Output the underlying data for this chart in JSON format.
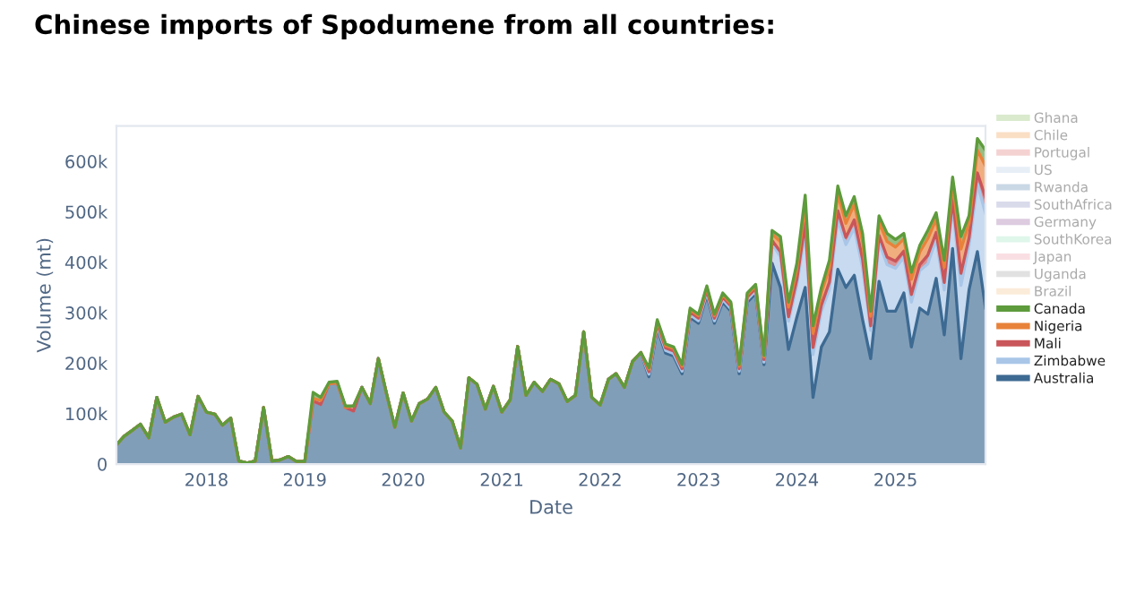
{
  "chart_data": {
    "type": "area",
    "stacked": true,
    "title": "Chinese imports of Spodumene from all countries:",
    "xlabel": "Date",
    "ylabel": "Volume (mt)",
    "x": [
      "2017-02",
      "2017-03",
      "2017-04",
      "2017-05",
      "2017-06",
      "2017-07",
      "2017-08",
      "2017-09",
      "2017-10",
      "2017-11",
      "2017-12",
      "2018-01",
      "2018-02",
      "2018-03",
      "2018-04",
      "2018-05",
      "2018-06",
      "2018-07",
      "2018-08",
      "2018-09",
      "2018-10",
      "2018-11",
      "2018-12",
      "2019-01",
      "2019-02",
      "2019-03",
      "2019-04",
      "2019-05",
      "2019-06",
      "2019-07",
      "2019-08",
      "2019-09",
      "2019-10",
      "2019-11",
      "2019-12",
      "2020-01",
      "2020-02",
      "2020-03",
      "2020-04",
      "2020-05",
      "2020-06",
      "2020-07",
      "2020-08",
      "2020-09",
      "2020-10",
      "2020-11",
      "2020-12",
      "2021-01",
      "2021-02",
      "2021-03",
      "2021-04",
      "2021-05",
      "2021-06",
      "2021-07",
      "2021-08",
      "2021-09",
      "2021-10",
      "2021-11",
      "2021-12",
      "2022-01",
      "2022-02",
      "2022-03",
      "2022-04",
      "2022-05",
      "2022-06",
      "2022-07",
      "2022-08",
      "2022-09",
      "2022-10",
      "2022-11",
      "2022-12",
      "2023-01",
      "2023-02",
      "2023-03",
      "2023-04",
      "2023-05",
      "2023-06",
      "2023-07",
      "2023-08",
      "2023-09",
      "2023-10",
      "2023-11",
      "2023-12",
      "2024-01",
      "2024-02",
      "2024-03",
      "2024-04",
      "2024-05",
      "2024-06",
      "2024-07",
      "2024-08",
      "2024-09",
      "2024-10",
      "2024-11",
      "2024-12",
      "2025-01",
      "2025-02",
      "2025-03",
      "2025-04",
      "2025-05",
      "2025-06",
      "2025-07",
      "2025-08",
      "2025-09",
      "2025-10",
      "2025-11",
      "2025-12"
    ],
    "xticks": [
      {
        "value": "2018-01",
        "label": "2018"
      },
      {
        "value": "2019-01",
        "label": "2019"
      },
      {
        "value": "2020-01",
        "label": "2020"
      },
      {
        "value": "2021-01",
        "label": "2021"
      },
      {
        "value": "2022-01",
        "label": "2022"
      },
      {
        "value": "2023-01",
        "label": "2023"
      },
      {
        "value": "2024-01",
        "label": "2024"
      },
      {
        "value": "2025-01",
        "label": "2025"
      }
    ],
    "xlim": [
      "2017-02",
      "2025-12"
    ],
    "ylim": [
      0,
      670000
    ],
    "yticks": [
      0,
      {
        "value": 100000,
        "label": "100k"
      },
      {
        "value": 200000,
        "label": "200k"
      },
      {
        "value": 300000,
        "label": "300k"
      },
      {
        "value": 400000,
        "label": "400k"
      },
      {
        "value": 500000,
        "label": "500k"
      },
      {
        "value": 600000,
        "label": "600k"
      }
    ],
    "grid": false,
    "legend": "right",
    "series": [
      {
        "name": "Australia",
        "color": "#3d6a92",
        "values": [
          38000,
          55000,
          67000,
          79000,
          52000,
          132000,
          83000,
          93000,
          99000,
          58000,
          134000,
          103000,
          99000,
          77000,
          91000,
          6000,
          2000,
          6000,
          112000,
          6000,
          8000,
          15000,
          5000,
          5000,
          125000,
          118000,
          159000,
          161000,
          112000,
          105000,
          152000,
          120000,
          209000,
          138000,
          73000,
          141000,
          85000,
          120000,
          129000,
          152000,
          103000,
          85000,
          32000,
          171000,
          158000,
          109000,
          154000,
          103000,
          127000,
          233000,
          136000,
          162000,
          144000,
          168000,
          159000,
          124000,
          136000,
          262000,
          132000,
          117000,
          168000,
          179000,
          152000,
          203000,
          221000,
          173000,
          268000,
          220000,
          214000,
          179000,
          291000,
          279000,
          335000,
          279000,
          321000,
          303000,
          179000,
          321000,
          338000,
          197000,
          398000,
          350000,
          227000,
          291000,
          350000,
          132000,
          232000,
          262000,
          386000,
          350000,
          374000,
          286000,
          209000,
          362000,
          303000,
          303000,
          339000,
          232000,
          309000,
          297000,
          368000,
          256000,
          427000,
          209000,
          345000,
          421000,
          309000
        ]
      },
      {
        "name": "Zimbabwe",
        "color": "#a9c6e8",
        "values": [
          0,
          0,
          0,
          0,
          0,
          0,
          0,
          0,
          0,
          0,
          0,
          0,
          0,
          0,
          0,
          0,
          0,
          0,
          0,
          0,
          0,
          0,
          0,
          0,
          0,
          0,
          0,
          0,
          0,
          0,
          0,
          0,
          0,
          0,
          0,
          0,
          0,
          0,
          0,
          0,
          0,
          0,
          0,
          0,
          0,
          0,
          0,
          0,
          0,
          0,
          0,
          0,
          0,
          0,
          0,
          0,
          0,
          0,
          0,
          0,
          0,
          0,
          0,
          0,
          0,
          5000,
          5000,
          5000,
          5000,
          5000,
          5000,
          5000,
          5000,
          5000,
          5000,
          5000,
          5000,
          5000,
          5000,
          5000,
          39000,
          61000,
          56000,
          64000,
          110000,
          85000,
          71000,
          85000,
          99000,
          85000,
          94000,
          103000,
          56000,
          78000,
          92000,
          85000,
          71000,
          89000,
          74000,
          100000,
          78000,
          89000,
          85000,
          145000,
          88000,
          134000,
          188000
        ]
      },
      {
        "name": "Mali",
        "color": "#c9565a",
        "values": [
          0,
          0,
          0,
          0,
          0,
          0,
          0,
          0,
          0,
          0,
          0,
          0,
          0,
          0,
          0,
          0,
          0,
          0,
          0,
          0,
          0,
          0,
          0,
          0,
          0,
          0,
          0,
          0,
          0,
          0,
          0,
          0,
          0,
          0,
          0,
          0,
          0,
          0,
          0,
          0,
          0,
          0,
          0,
          0,
          0,
          0,
          0,
          0,
          0,
          0,
          0,
          0,
          0,
          0,
          0,
          0,
          0,
          0,
          0,
          0,
          0,
          0,
          0,
          0,
          0,
          5000,
          5000,
          5000,
          5000,
          5000,
          5000,
          5000,
          5000,
          5000,
          5000,
          5000,
          5000,
          5000,
          5000,
          5000,
          6000,
          10000,
          9000,
          11000,
          18000,
          14000,
          12000,
          14000,
          17000,
          14000,
          16000,
          17000,
          9000,
          13000,
          15000,
          14000,
          12000,
          15000,
          12000,
          17000,
          13000,
          15000,
          14000,
          24000,
          15000,
          22000,
          31000
        ]
      },
      {
        "name": "Nigeria",
        "color": "#e8823a",
        "values": [
          0,
          0,
          0,
          0,
          0,
          0,
          0,
          0,
          0,
          0,
          0,
          0,
          0,
          0,
          0,
          0,
          0,
          0,
          0,
          0,
          0,
          0,
          0,
          0,
          5000,
          8000,
          0,
          0,
          0,
          10000,
          0,
          0,
          0,
          0,
          0,
          0,
          0,
          0,
          0,
          0,
          0,
          0,
          0,
          0,
          0,
          0,
          0,
          0,
          0,
          0,
          0,
          0,
          0,
          0,
          0,
          0,
          0,
          0,
          0,
          0,
          0,
          0,
          0,
          0,
          0,
          5000,
          5000,
          5000,
          5000,
          5000,
          5000,
          5000,
          5000,
          5000,
          5000,
          5000,
          5000,
          5000,
          5000,
          5000,
          13000,
          20000,
          19000,
          21000,
          37000,
          28000,
          24000,
          28000,
          33000,
          28000,
          31000,
          34000,
          19000,
          26000,
          31000,
          28000,
          24000,
          30000,
          25000,
          33000,
          26000,
          30000,
          28000,
          48000,
          29000,
          45000,
          63000
        ]
      },
      {
        "name": "Canada",
        "color": "#5e9b3c",
        "values": [
          0,
          0,
          0,
          0,
          0,
          0,
          0,
          0,
          0,
          0,
          0,
          0,
          0,
          0,
          0,
          0,
          0,
          0,
          0,
          0,
          0,
          0,
          0,
          0,
          12000,
          6000,
          3000,
          3000,
          3000,
          0,
          0,
          0,
          0,
          0,
          0,
          0,
          0,
          0,
          0,
          0,
          0,
          0,
          0,
          0,
          0,
          0,
          0,
          0,
          0,
          0,
          0,
          0,
          0,
          0,
          0,
          0,
          0,
          0,
          0,
          0,
          0,
          0,
          0,
          0,
          0,
          3000,
          3000,
          3000,
          3000,
          3000,
          3000,
          3000,
          3000,
          3000,
          3000,
          3000,
          3000,
          3000,
          3000,
          3000,
          7000,
          10000,
          10000,
          11000,
          18000,
          15000,
          11000,
          15000,
          16000,
          15000,
          15000,
          17000,
          10000,
          13000,
          16000,
          15000,
          11000,
          14000,
          13000,
          16000,
          13000,
          14000,
          15000,
          25000,
          15000,
          23000,
          31000
        ]
      },
      {
        "name": "Brazil",
        "color": "#f7d3ab",
        "values": [
          null,
          null,
          null,
          null,
          null,
          null,
          null,
          null,
          null,
          null,
          null,
          null,
          null,
          null,
          null,
          null,
          null,
          null,
          null,
          null,
          null,
          null,
          null,
          null,
          null,
          null,
          null,
          null,
          null,
          null,
          null,
          null,
          null,
          null,
          null,
          null,
          null,
          null,
          null,
          null,
          null,
          null,
          null,
          null,
          null,
          null,
          null,
          null,
          null,
          null,
          null,
          null,
          null,
          null,
          null,
          null,
          null,
          null,
          null,
          null,
          null,
          null,
          null,
          null,
          null,
          null,
          null,
          null,
          null,
          null,
          null,
          null,
          null,
          null,
          null,
          null,
          null,
          null,
          null,
          null,
          null,
          null,
          null,
          null,
          null,
          null,
          null,
          null,
          null,
          null,
          null,
          null,
          null,
          null,
          null,
          null,
          null,
          null,
          null,
          null,
          null,
          null,
          null,
          null,
          null,
          null,
          null
        ]
      },
      {
        "name": "Uganda",
        "color": "#bdbdbd",
        "values": [
          null,
          null,
          null,
          null,
          null,
          null,
          null,
          null,
          null,
          null,
          null,
          null,
          null,
          null,
          null,
          null,
          null,
          null,
          null,
          null,
          null,
          null,
          null,
          null,
          null,
          null,
          null,
          null,
          null,
          null,
          null,
          null,
          null,
          null,
          null,
          null,
          null,
          null,
          null,
          null,
          null,
          null,
          null,
          null,
          null,
          null,
          null,
          null,
          null,
          null,
          null,
          null,
          null,
          null,
          null,
          null,
          null,
          null,
          null,
          null,
          null,
          null,
          null,
          null,
          null,
          null,
          null,
          null,
          null,
          null,
          null,
          null,
          null,
          null,
          null,
          null,
          null,
          null,
          null,
          null,
          null,
          null,
          null,
          null,
          null,
          null,
          null,
          null,
          null,
          null,
          null,
          null,
          null,
          null,
          null,
          null,
          null,
          null,
          null,
          null,
          null,
          null,
          null,
          null,
          null,
          null,
          null
        ]
      },
      {
        "name": "Japan",
        "color": "#f2b9c2",
        "values": [
          null,
          null,
          null,
          null,
          null,
          null,
          null,
          null,
          null,
          null,
          null,
          null,
          null,
          null,
          null,
          null,
          null,
          null,
          null,
          null,
          null,
          null,
          null,
          null,
          null,
          null,
          null,
          null,
          null,
          null,
          null,
          null,
          null,
          null,
          null,
          null,
          null,
          null,
          null,
          null,
          null,
          null,
          null,
          null,
          null,
          null,
          null,
          null,
          null,
          null,
          null,
          null,
          null,
          null,
          null,
          null,
          null,
          null,
          null,
          null,
          null,
          null,
          null,
          null,
          null,
          null,
          null,
          null,
          null,
          null,
          null,
          null,
          null,
          null,
          null,
          null,
          null,
          null,
          null,
          null,
          null,
          null,
          null,
          null,
          null,
          null,
          null,
          null,
          null,
          null,
          null,
          null,
          null,
          null,
          null,
          null,
          null,
          null,
          null,
          null,
          null,
          null,
          null,
          null,
          null,
          null,
          null
        ]
      },
      {
        "name": "SouthKorea",
        "color": "#b9ecd2",
        "values": [
          null,
          null,
          null,
          null,
          null,
          null,
          null,
          null,
          null,
          null,
          null,
          null,
          null,
          null,
          null,
          null,
          null,
          null,
          null,
          null,
          null,
          null,
          null,
          null,
          null,
          null,
          null,
          null,
          null,
          null,
          null,
          null,
          null,
          null,
          null,
          null,
          null,
          null,
          null,
          null,
          null,
          null,
          null,
          null,
          null,
          null,
          null,
          null,
          null,
          null,
          null,
          null,
          null,
          null,
          null,
          null,
          null,
          null,
          null,
          null,
          null,
          null,
          null,
          null,
          null,
          null,
          null,
          null,
          null,
          null,
          null,
          null,
          null,
          null,
          null,
          null,
          null,
          null,
          null,
          null,
          null,
          null,
          null,
          null,
          null,
          null,
          null,
          null,
          null,
          null,
          null,
          null,
          null,
          null,
          null,
          null,
          null,
          null,
          null,
          null,
          null,
          null,
          null,
          null,
          null,
          null,
          null
        ]
      },
      {
        "name": "Germany",
        "color": "#b48cba",
        "values": [
          null,
          null,
          null,
          null,
          null,
          null,
          null,
          null,
          null,
          null,
          null,
          null,
          null,
          null,
          null,
          null,
          null,
          null,
          null,
          null,
          null,
          null,
          null,
          null,
          null,
          null,
          null,
          null,
          null,
          null,
          null,
          null,
          null,
          null,
          null,
          null,
          null,
          null,
          null,
          null,
          null,
          null,
          null,
          null,
          null,
          null,
          null,
          null,
          null,
          null,
          null,
          null,
          null,
          null,
          null,
          null,
          null,
          null,
          null,
          null,
          null,
          null,
          null,
          null,
          null,
          null,
          null,
          null,
          null,
          null,
          null,
          null,
          null,
          null,
          null,
          null,
          null,
          null,
          null,
          null,
          null,
          null,
          null,
          null,
          null,
          null,
          null,
          null,
          null,
          null,
          null,
          null,
          null,
          null,
          null,
          null,
          null,
          null,
          null,
          null,
          null,
          null,
          null,
          null,
          null,
          null,
          null
        ]
      },
      {
        "name": "SouthAfrica",
        "color": "#aab0d2",
        "values": [
          null,
          null,
          null,
          null,
          null,
          null,
          null,
          null,
          null,
          null,
          null,
          null,
          null,
          null,
          null,
          null,
          null,
          null,
          null,
          null,
          null,
          null,
          null,
          null,
          null,
          null,
          null,
          null,
          null,
          null,
          null,
          null,
          null,
          null,
          null,
          null,
          null,
          null,
          null,
          null,
          null,
          null,
          null,
          null,
          null,
          null,
          null,
          null,
          null,
          null,
          null,
          null,
          null,
          null,
          null,
          null,
          null,
          null,
          null,
          null,
          null,
          null,
          null,
          null,
          null,
          null,
          null,
          null,
          null,
          null,
          null,
          null,
          null,
          null,
          null,
          null,
          null,
          null,
          null,
          null,
          null,
          null,
          null,
          null,
          null,
          null,
          null,
          null,
          null,
          null,
          null,
          null,
          null,
          null,
          null,
          null,
          null,
          null,
          null,
          null,
          null,
          null,
          null,
          null,
          null,
          null,
          null
        ]
      },
      {
        "name": "Rwanda",
        "color": "#8aa8c8",
        "values": [
          null,
          null,
          null,
          null,
          null,
          null,
          null,
          null,
          null,
          null,
          null,
          null,
          null,
          null,
          null,
          null,
          null,
          null,
          null,
          null,
          null,
          null,
          null,
          null,
          null,
          null,
          null,
          null,
          null,
          null,
          null,
          null,
          null,
          null,
          null,
          null,
          null,
          null,
          null,
          null,
          null,
          null,
          null,
          null,
          null,
          null,
          null,
          null,
          null,
          null,
          null,
          null,
          null,
          null,
          null,
          null,
          null,
          null,
          null,
          null,
          null,
          null,
          null,
          null,
          null,
          null,
          null,
          null,
          null,
          null,
          null,
          null,
          null,
          null,
          null,
          null,
          null,
          null,
          null,
          null,
          null,
          null,
          null,
          null,
          null,
          null,
          null,
          null,
          null,
          null,
          null,
          null,
          null,
          null,
          null,
          null,
          null,
          null,
          null,
          null,
          null,
          null,
          null,
          null,
          null,
          null,
          null
        ]
      },
      {
        "name": "US",
        "color": "#c9d9ec",
        "values": [
          null,
          null,
          null,
          null,
          null,
          null,
          null,
          null,
          null,
          null,
          null,
          null,
          null,
          null,
          null,
          null,
          null,
          null,
          null,
          null,
          null,
          null,
          null,
          null,
          null,
          null,
          null,
          null,
          null,
          null,
          null,
          null,
          null,
          null,
          null,
          null,
          null,
          null,
          null,
          null,
          null,
          null,
          null,
          null,
          null,
          null,
          null,
          null,
          null,
          null,
          null,
          null,
          null,
          null,
          null,
          null,
          null,
          null,
          null,
          null,
          null,
          null,
          null,
          null,
          null,
          null,
          null,
          null,
          null,
          null,
          null,
          null,
          null,
          null,
          null,
          null,
          null,
          null,
          null,
          null,
          null,
          null,
          null,
          null,
          null,
          null,
          null,
          null,
          null,
          null,
          null,
          null,
          null,
          null,
          null,
          null,
          null,
          null,
          null,
          null,
          null,
          null,
          null,
          null,
          null,
          null,
          null
        ]
      },
      {
        "name": "Portugal",
        "color": "#e99b9b",
        "values": [
          null,
          null,
          null,
          null,
          null,
          null,
          null,
          null,
          null,
          null,
          null,
          null,
          null,
          null,
          null,
          null,
          null,
          null,
          null,
          null,
          null,
          null,
          null,
          null,
          null,
          null,
          null,
          null,
          null,
          null,
          null,
          null,
          null,
          null,
          null,
          null,
          null,
          null,
          null,
          null,
          null,
          null,
          null,
          null,
          null,
          null,
          null,
          null,
          null,
          null,
          null,
          null,
          null,
          null,
          null,
          null,
          null,
          null,
          null,
          null,
          null,
          null,
          null,
          null,
          null,
          null,
          null,
          null,
          null,
          null,
          null,
          null,
          null,
          null,
          null,
          null,
          null,
          null,
          null,
          null,
          null,
          null,
          null,
          null,
          null,
          null,
          null,
          null,
          null,
          null,
          null,
          null,
          null,
          null,
          null,
          null,
          null,
          null,
          null,
          null,
          null,
          null,
          null,
          null,
          null,
          null,
          null
        ]
      },
      {
        "name": "Chile",
        "color": "#f5b87e",
        "values": [
          null,
          null,
          null,
          null,
          null,
          null,
          null,
          null,
          null,
          null,
          null,
          null,
          null,
          null,
          null,
          null,
          null,
          null,
          null,
          null,
          null,
          null,
          null,
          null,
          null,
          null,
          null,
          null,
          null,
          null,
          null,
          null,
          null,
          null,
          null,
          null,
          null,
          null,
          null,
          null,
          null,
          null,
          null,
          null,
          null,
          null,
          null,
          null,
          null,
          null,
          null,
          null,
          null,
          null,
          null,
          null,
          null,
          null,
          null,
          null,
          null,
          null,
          null,
          null,
          null,
          null,
          null,
          null,
          null,
          null,
          null,
          null,
          null,
          null,
          null,
          null,
          null,
          null,
          null,
          null,
          null,
          null,
          null,
          null,
          null,
          null,
          null,
          null,
          null,
          null,
          null,
          null,
          null,
          null,
          null,
          null,
          null,
          null,
          null,
          null,
          null,
          null,
          null,
          null,
          null,
          null,
          null
        ]
      },
      {
        "name": "Ghana",
        "color": "#aad091",
        "values": [
          null,
          null,
          null,
          null,
          null,
          null,
          null,
          null,
          null,
          null,
          null,
          null,
          null,
          null,
          null,
          null,
          null,
          null,
          null,
          null,
          null,
          null,
          null,
          null,
          null,
          null,
          null,
          null,
          null,
          null,
          null,
          null,
          null,
          null,
          null,
          null,
          null,
          null,
          null,
          null,
          null,
          null,
          null,
          null,
          null,
          null,
          null,
          null,
          null,
          null,
          null,
          null,
          null,
          null,
          null,
          null,
          null,
          null,
          null,
          null,
          null,
          null,
          null,
          null,
          null,
          null,
          null,
          null,
          null,
          null,
          null,
          null,
          null,
          null,
          null,
          null,
          null,
          null,
          null,
          null,
          null,
          null,
          null,
          null,
          null,
          null,
          null,
          null,
          null,
          null,
          null,
          null,
          null,
          null,
          null,
          null,
          null,
          null,
          null,
          null,
          null,
          null,
          null,
          null,
          null,
          null,
          null
        ]
      }
    ]
  }
}
